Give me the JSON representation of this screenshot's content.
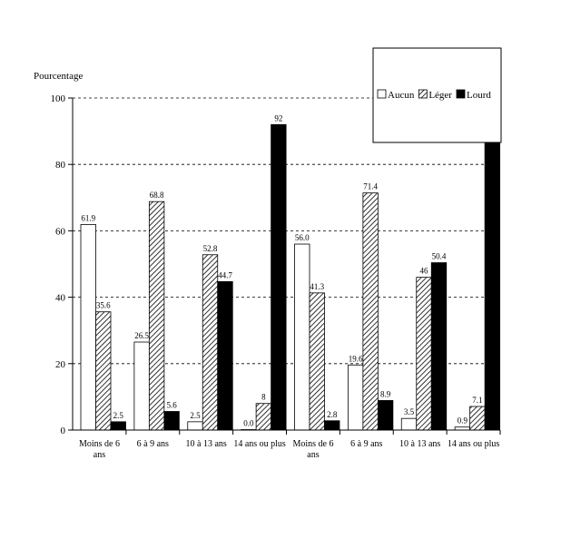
{
  "chart_data": {
    "type": "bar",
    "ylabel": "Pourcentage",
    "ylim": [
      0,
      100
    ],
    "yticks": [
      0,
      20,
      40,
      60,
      80,
      100
    ],
    "grid": true,
    "legend_position": "top-right",
    "categories": [
      [
        "Moins de 6",
        "ans"
      ],
      [
        "6 à 9 ans"
      ],
      [
        "10 à 13 ans"
      ],
      [
        "14 ans ou plus"
      ],
      [
        "Moins de 6",
        "ans"
      ],
      [
        "6 à 9 ans"
      ],
      [
        "10 à 13 ans"
      ],
      [
        "14 ans ou plus"
      ]
    ],
    "series": [
      {
        "name": "Aucun",
        "fill": "white",
        "values": [
          61.9,
          26.5,
          2.5,
          0.0,
          56.0,
          19.6,
          3.5,
          0.9
        ],
        "labels": [
          "61.9",
          "26.5",
          "2.5",
          "0.0",
          "56.0",
          "19.6",
          "3.5",
          "0.9"
        ]
      },
      {
        "name": "Léger",
        "fill": "hatch",
        "values": [
          35.6,
          68.8,
          52.8,
          8,
          41.3,
          71.4,
          46,
          7.1
        ],
        "labels": [
          "35.6",
          "68.8",
          "52.8",
          "8",
          "41.3",
          "71.4",
          "46",
          "7.1"
        ]
      },
      {
        "name": "Lourd",
        "fill": "black",
        "values": [
          2.5,
          5.6,
          44.7,
          92,
          2.8,
          8.9,
          50.4,
          92
        ],
        "labels": [
          "2.5",
          "5.6",
          "44.7",
          "92",
          "2.8",
          "8.9",
          "50.4",
          "92"
        ]
      }
    ]
  },
  "colors": {
    "axis": "#000000",
    "grid": "#000000",
    "white_bar": "#ffffff",
    "black_bar": "#000000"
  }
}
